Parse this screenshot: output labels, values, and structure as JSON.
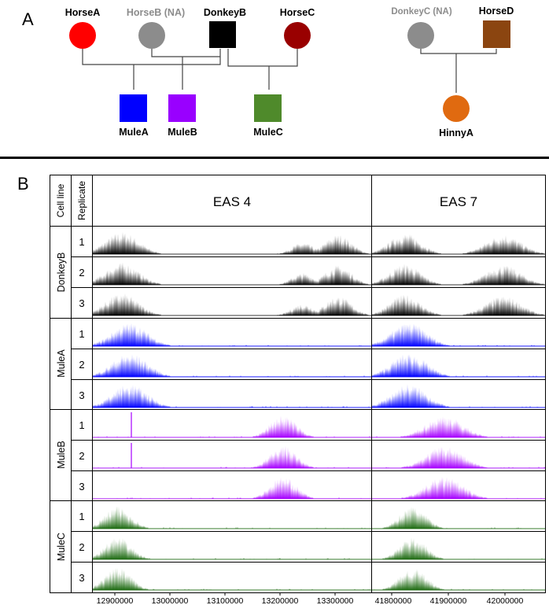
{
  "panel_a": {
    "label": "A",
    "people": {
      "horse_a": {
        "name": "HorseA",
        "shape": "circle",
        "color": "#ff0000"
      },
      "horse_b": {
        "name": "HorseB (NA)",
        "shape": "circle",
        "color": "#8c8c8c"
      },
      "donkey_b": {
        "name": "DonkeyB",
        "shape": "square",
        "color": "#000000"
      },
      "horse_c": {
        "name": "HorseC",
        "shape": "circle",
        "color": "#990000"
      },
      "mule_a": {
        "name": "MuleA",
        "shape": "square",
        "color": "#0000ff"
      },
      "mule_b": {
        "name": "MuleB",
        "shape": "square",
        "color": "#9900ff"
      },
      "mule_c": {
        "name": "MuleC",
        "shape": "square",
        "color": "#4f8a2b"
      },
      "donkey_c": {
        "name": "DonkeyC (NA)",
        "shape": "circle",
        "color": "#8c8c8c"
      },
      "horse_d": {
        "name": "HorseD",
        "shape": "square",
        "color": "#8b4510"
      },
      "hinny_a": {
        "name": "HinnyA",
        "shape": "circle",
        "color": "#e06a10"
      }
    }
  },
  "panel_b": {
    "label": "B",
    "header": {
      "cell_line": "Cell line",
      "replicate": "Replicate"
    },
    "regions": [
      {
        "name": "EAS 4",
        "ticks": [
          "12900000",
          "13000000",
          "13100000",
          "13200000",
          "13300000"
        ]
      },
      {
        "name": "EAS 7",
        "ticks": [
          "41800000",
          "41900000",
          "42000000"
        ]
      }
    ],
    "groups": [
      {
        "name": "DonkeyB",
        "color": "#000000",
        "replicates": [
          "1",
          "2",
          "3"
        ]
      },
      {
        "name": "MuleA",
        "color": "#0000ff",
        "replicates": [
          "1",
          "2",
          "3"
        ]
      },
      {
        "name": "MuleB",
        "color": "#a600ff",
        "replicates": [
          "1",
          "2",
          "3"
        ]
      },
      {
        "name": "MuleC",
        "color": "#1e6b12",
        "replicates": [
          "1",
          "2",
          "3"
        ]
      }
    ]
  }
}
